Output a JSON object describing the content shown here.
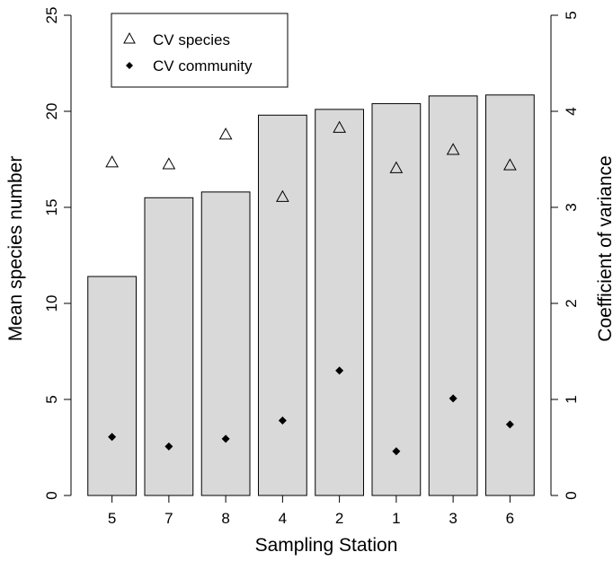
{
  "chart_data": {
    "type": "bar",
    "categories": [
      "5",
      "7",
      "8",
      "4",
      "2",
      "1",
      "3",
      "6"
    ],
    "xlabel": "Sampling Station",
    "ylabel": "Mean species number",
    "y2label": "Coefficient of variance",
    "ylim": [
      0,
      25
    ],
    "y2lim": [
      0,
      5
    ],
    "yticks": [
      0,
      5,
      10,
      15,
      20,
      25
    ],
    "y2ticks": [
      0,
      1,
      2,
      3,
      4,
      5
    ],
    "grid": false,
    "bar_color": "#d9d9d9",
    "bars": {
      "axis": "left",
      "values": [
        11.4,
        15.5,
        15.8,
        19.8,
        20.1,
        20.4,
        20.8,
        20.85
      ]
    },
    "series": [
      {
        "name": "CV species",
        "axis": "right",
        "marker": "open-triangle",
        "values": [
          3.47,
          3.45,
          3.76,
          3.11,
          3.83,
          3.41,
          3.6,
          3.44
        ]
      },
      {
        "name": "CV community",
        "axis": "right",
        "marker": "filled-diamond",
        "values": [
          0.61,
          0.51,
          0.59,
          0.78,
          1.3,
          0.46,
          1.01,
          0.74
        ]
      }
    ],
    "legend": {
      "position": "top-left",
      "entries": [
        {
          "label": "CV species",
          "marker": "open-triangle"
        },
        {
          "label": "CV community",
          "marker": "filled-diamond"
        }
      ]
    }
  }
}
